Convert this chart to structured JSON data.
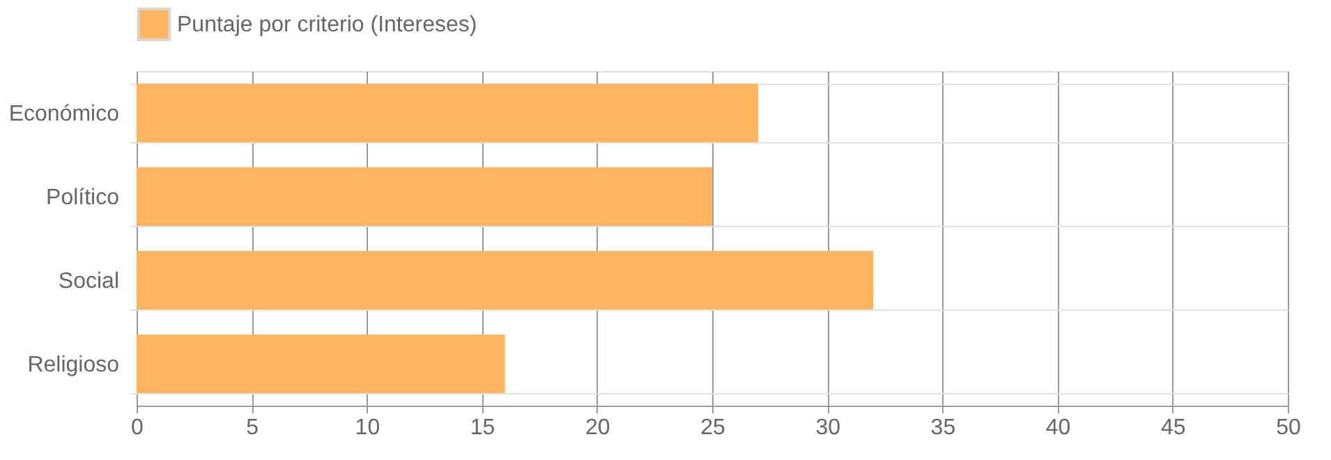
{
  "chart_data": {
    "type": "bar",
    "orientation": "horizontal",
    "categories": [
      "Económico",
      "Político",
      "Social",
      "Religioso"
    ],
    "series": [
      {
        "name": "Puntaje por criterio (Intereses)",
        "color": "#ffb55f",
        "values": [
          27,
          25,
          32,
          16
        ]
      }
    ],
    "xlim": [
      0,
      50
    ],
    "xticks": [
      0,
      5,
      10,
      15,
      20,
      25,
      30,
      35,
      40,
      45,
      50
    ],
    "grid": true,
    "legend": "top"
  }
}
